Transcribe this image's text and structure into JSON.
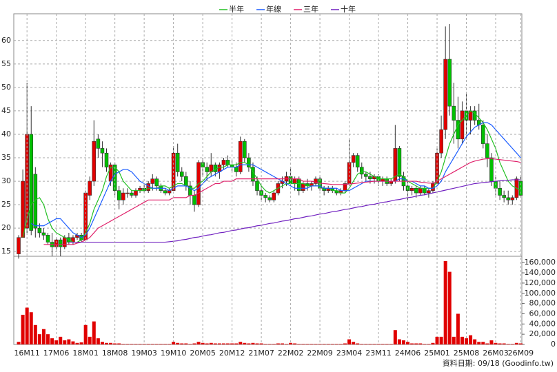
{
  "chart_data": [
    {
      "type": "candlestick",
      "up_color": "#e00000",
      "down_color": "#00c000",
      "open": [
        14.5,
        18,
        20,
        40,
        31.5,
        20,
        19,
        18.5,
        17,
        16,
        17.5,
        16,
        18,
        17,
        18,
        18.5,
        17.5,
        27,
        30,
        39,
        37,
        36,
        30,
        33.5,
        28,
        26,
        27.5,
        27.5,
        27,
        28,
        28.5,
        28,
        29.5,
        30.5,
        29,
        28,
        27.5,
        28,
        36,
        32,
        31,
        29,
        27,
        25,
        34,
        33,
        32,
        33.5,
        32,
        33.5,
        34.5,
        33.5,
        33,
        32,
        38.5,
        35,
        33,
        30,
        28,
        27,
        26.5,
        26,
        27.5,
        29.5,
        30,
        31,
        29.5,
        30.5,
        28,
        29.5,
        29,
        29.5,
        30.5,
        28.5,
        28,
        28.5,
        28,
        27.5,
        28,
        29.5,
        34,
        35.5,
        33,
        31.5,
        31,
        30.5,
        31,
        30,
        30.5,
        29.5,
        30,
        37,
        31,
        29,
        28,
        28.5,
        27.5,
        28.5,
        27.5,
        28,
        29.5,
        36,
        41,
        56,
        46,
        43,
        39,
        45,
        43,
        45,
        43,
        42,
        38,
        35,
        30,
        28.5,
        27,
        26.5,
        26,
        26.5,
        30
      ],
      "high": [
        18.5,
        32.5,
        51,
        46,
        33,
        21,
        20,
        19,
        19,
        18,
        18,
        18.5,
        19,
        18.5,
        19,
        19,
        28,
        31,
        43,
        40,
        38.5,
        37,
        34,
        34,
        29,
        28.5,
        28.5,
        28,
        28.5,
        29,
        29.5,
        30,
        31.5,
        31,
        29.5,
        28.5,
        28.5,
        37.5,
        38,
        33,
        32,
        30,
        28,
        34.5,
        35,
        34,
        36,
        34,
        34,
        35,
        35.5,
        34.5,
        34,
        39.5,
        39,
        36,
        34,
        31,
        29,
        27.5,
        27,
        28,
        30,
        31,
        32,
        33,
        31,
        31,
        30,
        30.5,
        30,
        31,
        31,
        29,
        29,
        29,
        28.5,
        28.5,
        30,
        39,
        36,
        36,
        34,
        32,
        32,
        31.5,
        31.5,
        31,
        31,
        30.5,
        42,
        37.5,
        32,
        30,
        29,
        29,
        29,
        29,
        28.5,
        30,
        37,
        44,
        63,
        63.5,
        51,
        48,
        47,
        49,
        46,
        46,
        46.5,
        43,
        40,
        36,
        31,
        30,
        28,
        28,
        27,
        31,
        31
      ],
      "low": [
        13.5,
        18,
        19,
        18.5,
        18,
        18,
        17.5,
        16.5,
        14,
        15.5,
        14,
        15.5,
        16.5,
        16.5,
        17.5,
        17,
        17.5,
        26,
        29,
        35,
        33,
        32,
        29,
        27,
        24,
        25,
        26.5,
        26.5,
        26.5,
        27.5,
        27.5,
        27.5,
        28,
        28,
        27.5,
        27,
        27,
        28,
        31,
        30,
        28,
        25,
        23.5,
        24.5,
        31,
        30,
        31,
        31,
        30.5,
        32.5,
        33,
        32,
        31,
        31.5,
        34,
        32,
        29,
        27,
        26,
        25.5,
        25.5,
        25.5,
        27,
        28.5,
        29,
        29,
        28,
        27,
        27.5,
        28,
        28,
        29,
        28,
        27,
        27.5,
        27.5,
        27,
        27,
        27.5,
        29,
        33,
        32,
        30.5,
        30,
        29.5,
        29.5,
        29,
        29,
        29,
        29,
        29.5,
        30,
        28,
        26,
        27,
        26.5,
        27,
        27,
        26.5,
        27.5,
        29,
        35,
        39,
        44,
        38,
        37,
        38,
        39,
        40,
        42,
        41,
        37,
        33,
        29,
        27,
        26,
        25.5,
        25,
        25,
        26,
        26.5
      ],
      "close": [
        18,
        30,
        40,
        19.5,
        20,
        19,
        18.5,
        17,
        16,
        17.5,
        16,
        18,
        17,
        18,
        18.5,
        17.5,
        27.5,
        30,
        38.5,
        37,
        36,
        33,
        33.5,
        28,
        26,
        27.5,
        27.5,
        27,
        28,
        28.5,
        28,
        29.5,
        30.5,
        29,
        28,
        27.5,
        28,
        36,
        32,
        31,
        29,
        27,
        25,
        34,
        33,
        32,
        33.5,
        32,
        33.5,
        34.5,
        33.5,
        33,
        32,
        38.5,
        35,
        33,
        30,
        28,
        27,
        26.5,
        26,
        27.5,
        29.5,
        30,
        31,
        29.5,
        30.5,
        28,
        29.5,
        29,
        29.5,
        30.5,
        28.5,
        28,
        28.5,
        28,
        27.5,
        28,
        29.5,
        34,
        35.5,
        33,
        31.5,
        31,
        30.5,
        31,
        30,
        30.5,
        29.5,
        30,
        37,
        31,
        29,
        28,
        28.5,
        27.5,
        28.5,
        27.5,
        28,
        29.5,
        36,
        41,
        56,
        46,
        43,
        39,
        45,
        43,
        45,
        43,
        42,
        38,
        35,
        30,
        28.5,
        27,
        26.5,
        26,
        26.5,
        30.5,
        27
      ],
      "series": [
        {
          "name": "半年",
          "color": "#22c022",
          "values": [
            null,
            18,
            22,
            25,
            26,
            26.5,
            25,
            22,
            20,
            19,
            18.5,
            18,
            17.5,
            17,
            17,
            17.5,
            19,
            21,
            24,
            26,
            28,
            31,
            33,
            33,
            32,
            30,
            29,
            28,
            28,
            28,
            28,
            28.5,
            28.5,
            28.5,
            29,
            29,
            28.5,
            29,
            29.5,
            29.5,
            29,
            28.5,
            28.5,
            29.5,
            30,
            31,
            32,
            32.5,
            33,
            33,
            33.5,
            33.5,
            33.5,
            34,
            34,
            33.5,
            32,
            30.5,
            29,
            28,
            27.5,
            28,
            28.5,
            29,
            29.5,
            29.5,
            29.5,
            29.5,
            29.5,
            29,
            29,
            29,
            29,
            28.5,
            28.5,
            28,
            28,
            27.5,
            27.5,
            28.5,
            30,
            31.5,
            32,
            32,
            31.5,
            31,
            30.5,
            30.5,
            30.5,
            30.5,
            31,
            31.5,
            31,
            30,
            29.5,
            29,
            28.5,
            28.5,
            28.5,
            28.5,
            30,
            32,
            35,
            38,
            40,
            42,
            43,
            44,
            45,
            44.5,
            43.5,
            42.5,
            41,
            39,
            37,
            34,
            32,
            30,
            29,
            28.5,
            28
          ]
        },
        {
          "name": "年線",
          "color": "#1a5cff",
          "values": [
            null,
            null,
            null,
            21,
            20.5,
            20.5,
            20.5,
            21,
            21.5,
            22,
            22,
            21,
            20,
            19,
            18.5,
            18,
            18.5,
            20,
            22,
            24,
            26,
            28,
            30,
            31.5,
            32,
            32.5,
            32.5,
            32,
            31,
            30,
            29.5,
            29,
            28.5,
            28.5,
            28.5,
            28.5,
            28,
            28.5,
            29,
            29,
            29,
            28.5,
            28,
            28.5,
            29.5,
            30.5,
            31,
            31.5,
            32,
            32.5,
            33,
            33,
            33,
            33.5,
            33.5,
            33.5,
            33.5,
            33,
            32.5,
            32,
            31.5,
            31,
            30.5,
            30,
            29.5,
            29,
            28.5,
            28.5,
            28.5,
            28.5,
            29,
            29,
            29,
            28.5,
            28.5,
            28.5,
            28.5,
            28,
            28,
            28,
            28.5,
            29,
            29.5,
            30,
            30,
            30,
            30,
            30,
            30,
            30,
            30,
            30.5,
            30.5,
            30,
            30,
            29.5,
            29,
            29,
            28.5,
            28.5,
            29,
            30,
            32,
            33.5,
            35,
            36.5,
            38,
            39.5,
            40.5,
            41.5,
            42,
            42.5,
            42.5,
            42,
            41,
            40,
            39,
            38,
            37,
            36,
            35
          ]
        },
        {
          "name": "三年",
          "color": "#e0206a",
          "values": [
            null,
            null,
            null,
            null,
            null,
            null,
            16.5,
            16.5,
            16.5,
            16.5,
            16.5,
            16.5,
            16.5,
            16.5,
            16.8,
            17,
            17.5,
            18,
            19,
            20,
            20.5,
            21,
            21.5,
            22,
            22.5,
            23,
            23.5,
            24,
            24.5,
            25,
            25.5,
            26,
            26,
            26,
            26,
            26,
            26,
            26.5,
            26.5,
            26.5,
            26.5,
            27,
            27,
            27.5,
            28,
            28.5,
            29,
            29.5,
            29.5,
            30,
            30,
            30,
            30.5,
            30.5,
            30.5,
            30.5,
            30.5,
            30.5,
            30.5,
            30.5,
            30.5,
            30.5,
            30.5,
            30.5,
            30.5,
            30.5,
            30.5,
            30.5,
            30,
            30,
            30,
            29.8,
            29.6,
            29.5,
            29.4,
            29.3,
            29.3,
            29.3,
            29.3,
            29.4,
            29.5,
            29.6,
            29.7,
            29.8,
            29.9,
            30,
            30,
            30,
            30,
            30,
            30,
            30,
            30,
            30,
            30,
            30,
            29.8,
            29.7,
            29.6,
            29.6,
            30,
            30.5,
            31,
            31.5,
            32,
            32.5,
            33,
            33.5,
            34,
            34.3,
            34.5,
            34.7,
            34.8,
            34.8,
            34.7,
            34.6,
            34.5,
            34.4,
            34.3,
            34.2,
            34
          ]
        },
        {
          "name": "十年",
          "color": "#7020c0",
          "values": [
            null,
            null,
            null,
            null,
            null,
            null,
            null,
            null,
            null,
            null,
            null,
            null,
            17,
            17,
            17,
            17,
            17,
            17,
            17,
            17,
            17,
            17,
            17,
            17,
            17,
            17,
            17,
            17,
            17,
            17,
            17,
            17,
            17,
            17,
            17,
            17,
            17.1,
            17.2,
            17.3,
            17.5,
            17.6,
            17.8,
            18,
            18.1,
            18.3,
            18.5,
            18.6,
            18.8,
            19,
            19.1,
            19.3,
            19.5,
            19.6,
            19.8,
            20,
            20.1,
            20.3,
            20.5,
            20.6,
            20.8,
            21,
            21.1,
            21.3,
            21.5,
            21.6,
            21.8,
            22,
            22.1,
            22.3,
            22.5,
            22.6,
            22.8,
            23,
            23.1,
            23.3,
            23.5,
            23.6,
            23.8,
            24,
            24.1,
            24.3,
            24.5,
            24.6,
            24.8,
            25,
            25.1,
            25.3,
            25.5,
            25.6,
            25.8,
            26,
            26.1,
            26.3,
            26.5,
            26.6,
            26.8,
            27,
            27.1,
            27.3,
            27.5,
            27.7,
            27.9,
            28.1,
            28.3,
            28.5,
            28.7,
            28.9,
            29.1,
            29.3,
            29.5,
            29.6,
            29.7,
            29.8,
            29.9,
            30,
            30.1,
            30.2,
            30.2,
            30.3,
            30.3,
            30.3
          ]
        }
      ],
      "ylim": [
        14,
        65.7
      ],
      "yticks": [
        15,
        20,
        25,
        30,
        35,
        40,
        45,
        50,
        55,
        60
      ],
      "grid": true,
      "legend": "top"
    },
    {
      "type": "bar",
      "color": "#e00000",
      "categories": [
        null,
        null,
        "16M11",
        null,
        null,
        null,
        null,
        null,
        null,
        "17M06",
        null,
        null,
        null,
        null,
        null,
        null,
        "18M01",
        null,
        null,
        null,
        null,
        null,
        null,
        "18M08",
        null,
        null,
        null,
        null,
        null,
        null,
        "19M03",
        null,
        null,
        null,
        null,
        null,
        null,
        "19M10",
        null,
        null,
        null,
        null,
        null,
        null,
        "20M05",
        null,
        null,
        null,
        null,
        null,
        null,
        "20M12",
        null,
        null,
        null,
        null,
        null,
        null,
        "21M07",
        null,
        null,
        null,
        null,
        null,
        null,
        "22M02",
        null,
        null,
        null,
        null,
        null,
        null,
        "22M09",
        null,
        null,
        null,
        null,
        null,
        null,
        "23M04",
        null,
        null,
        null,
        null,
        null,
        null,
        "23M11",
        null,
        null,
        null,
        null,
        null,
        null,
        "24M06",
        null,
        null,
        null,
        null,
        null,
        null,
        "25M01",
        null,
        null,
        null,
        null,
        null,
        null,
        "25M08",
        null,
        null,
        null,
        null,
        null,
        null,
        "26M03",
        null,
        null,
        null,
        null,
        null,
        "26M09"
      ],
      "values": [
        5000,
        58000,
        72000,
        63000,
        38000,
        20000,
        30000,
        20000,
        12000,
        8000,
        15000,
        8000,
        10000,
        6000,
        3000,
        4000,
        38000,
        15000,
        45000,
        12000,
        5000,
        3000,
        3000,
        2000,
        2000,
        1000,
        1000,
        1000,
        1000,
        1000,
        1000,
        1000,
        1000,
        1000,
        1000,
        1000,
        1000,
        5000,
        3000,
        2000,
        2000,
        1000,
        2000,
        5000,
        3000,
        2000,
        3000,
        2000,
        2000,
        2000,
        2000,
        2000,
        2000,
        5000,
        3000,
        2000,
        3000,
        2000,
        2000,
        1000,
        1000,
        1000,
        2000,
        2000,
        1000,
        3000,
        2000,
        1000,
        1000,
        1000,
        1000,
        1000,
        1000,
        1000,
        1000,
        1000,
        1000,
        1000,
        2000,
        10000,
        5000,
        2000,
        1000,
        1000,
        1000,
        1000,
        1000,
        1000,
        1000,
        1000,
        28000,
        10000,
        8000,
        5000,
        2000,
        2000,
        2000,
        1000,
        1000,
        3000,
        15000,
        15000,
        163000,
        142000,
        15000,
        60000,
        15000,
        12000,
        18000,
        10000,
        5000,
        5000,
        2000,
        8000,
        3000,
        2000,
        2000,
        1000,
        1000,
        3000,
        2000
      ],
      "ylim": [
        0,
        172400
      ],
      "yticks": [
        0,
        {
          "value": 20000,
          "label": "20,000"
        },
        {
          "value": 40000,
          "label": "40,000"
        },
        {
          "value": 60000,
          "label": "60,000"
        },
        {
          "value": 80000,
          "label": "80,000"
        },
        {
          "value": 100000,
          "label": "100,000"
        },
        {
          "value": 120000,
          "label": "120,000"
        },
        {
          "value": 140000,
          "label": "140,000"
        },
        {
          "value": 160000,
          "label": "160,000"
        }
      ],
      "annotation": "資料日期: 09/18 (Goodinfo.tw)"
    }
  ]
}
